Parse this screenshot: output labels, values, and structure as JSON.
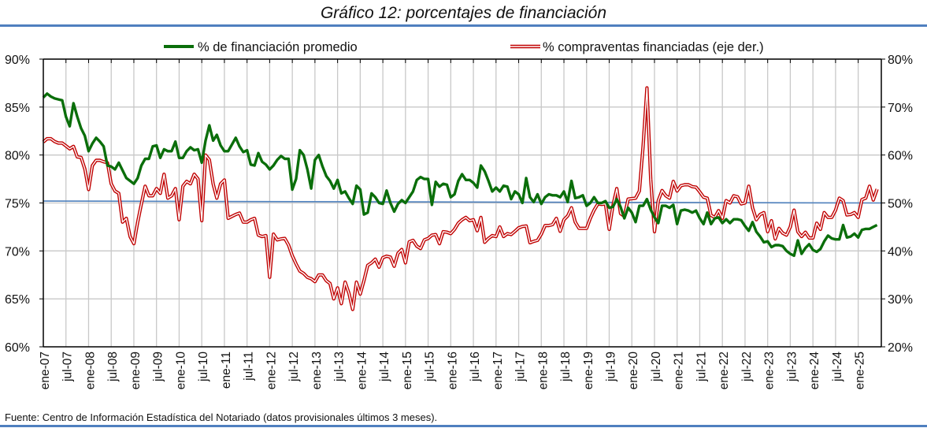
{
  "title": "Gráfico 12: porcentajes de financiación",
  "source": "Fuente: Centro de Información Estadística del Notariado (datos provisionales últimos 3 meses).",
  "chart_data": {
    "type": "line",
    "title": "Gráfico 12: porcentajes de financiación",
    "legend_position": "top",
    "grid": true,
    "left_axis": {
      "ylim": [
        60,
        90
      ],
      "ticks": [
        "60%",
        "65%",
        "70%",
        "75%",
        "80%",
        "85%",
        "90%"
      ],
      "tick_values": [
        60,
        65,
        70,
        75,
        80,
        85,
        90
      ]
    },
    "right_axis": {
      "ylim": [
        20,
        80
      ],
      "ticks": [
        "20%",
        "30%",
        "40%",
        "50%",
        "60%",
        "70%",
        "80%"
      ],
      "tick_values": [
        20,
        30,
        40,
        50,
        60,
        70,
        80
      ]
    },
    "x_tick_labels": [
      "ene-07",
      "jul-07",
      "ene-08",
      "jul-08",
      "ene-09",
      "jul-09",
      "ene-10",
      "jul-10",
      "ene-11",
      "jul-11",
      "ene-12",
      "jul-12",
      "ene-13",
      "jul-13",
      "ene-14",
      "jul-14",
      "ene-15",
      "jul-15",
      "ene-16",
      "jul-16",
      "ene-17",
      "jul-17",
      "ene-18",
      "jul-18",
      "ene-19",
      "jul-19",
      "ene-20",
      "jul-20",
      "ene-21",
      "jul-21",
      "ene-22",
      "jul-22",
      "ene-23",
      "jul-23",
      "ene-24",
      "jul-24",
      "ene-25"
    ],
    "x": [
      "2007-01",
      "2007-02",
      "2007-03",
      "2007-04",
      "2007-05",
      "2007-06",
      "2007-07",
      "2007-08",
      "2007-09",
      "2007-10",
      "2007-11",
      "2007-12",
      "2008-01",
      "2008-02",
      "2008-03",
      "2008-04",
      "2008-05",
      "2008-06",
      "2008-07",
      "2008-08",
      "2008-09",
      "2008-10",
      "2008-11",
      "2008-12",
      "2009-01",
      "2009-02",
      "2009-03",
      "2009-04",
      "2009-05",
      "2009-06",
      "2009-07",
      "2009-08",
      "2009-09",
      "2009-10",
      "2009-11",
      "2009-12",
      "2010-01",
      "2010-02",
      "2010-03",
      "2010-04",
      "2010-05",
      "2010-06",
      "2010-07",
      "2010-08",
      "2010-09",
      "2010-10",
      "2010-11",
      "2010-12",
      "2011-01",
      "2011-02",
      "2011-03",
      "2011-04",
      "2011-05",
      "2011-06",
      "2011-07",
      "2011-08",
      "2011-09",
      "2011-10",
      "2011-11",
      "2011-12",
      "2012-01",
      "2012-02",
      "2012-03",
      "2012-04",
      "2012-05",
      "2012-06",
      "2012-07",
      "2012-08",
      "2012-09",
      "2012-10",
      "2012-11",
      "2012-12",
      "2013-01",
      "2013-02",
      "2013-03",
      "2013-04",
      "2013-05",
      "2013-06",
      "2013-07",
      "2013-08",
      "2013-09",
      "2013-10",
      "2013-11",
      "2013-12",
      "2014-01",
      "2014-02",
      "2014-03",
      "2014-04",
      "2014-05",
      "2014-06",
      "2014-07",
      "2014-08",
      "2014-09",
      "2014-10",
      "2014-11",
      "2014-12",
      "2015-01",
      "2015-02",
      "2015-03",
      "2015-04",
      "2015-05",
      "2015-06",
      "2015-07",
      "2015-08",
      "2015-09",
      "2015-10",
      "2015-11",
      "2015-12",
      "2016-01",
      "2016-02",
      "2016-03",
      "2016-04",
      "2016-05",
      "2016-06",
      "2016-07",
      "2016-08",
      "2016-09",
      "2016-10",
      "2016-11",
      "2016-12",
      "2017-01",
      "2017-02",
      "2017-03",
      "2017-04",
      "2017-05",
      "2017-06",
      "2017-07",
      "2017-08",
      "2017-09",
      "2017-10",
      "2017-11",
      "2017-12",
      "2018-01",
      "2018-02",
      "2018-03",
      "2018-04",
      "2018-05",
      "2018-06",
      "2018-07",
      "2018-08",
      "2018-09",
      "2018-10",
      "2018-11",
      "2018-12",
      "2019-01",
      "2019-02",
      "2019-03",
      "2019-04",
      "2019-05",
      "2019-06",
      "2019-07",
      "2019-08",
      "2019-09",
      "2019-10",
      "2019-11",
      "2019-12",
      "2020-01",
      "2020-02",
      "2020-03",
      "2020-04",
      "2020-05",
      "2020-06",
      "2020-07",
      "2020-08",
      "2020-09",
      "2020-10",
      "2020-11",
      "2020-12",
      "2021-01",
      "2021-02",
      "2021-03",
      "2021-04",
      "2021-05",
      "2021-06",
      "2021-07",
      "2021-08",
      "2021-09",
      "2021-10",
      "2021-11",
      "2021-12",
      "2022-01",
      "2022-02",
      "2022-03",
      "2022-04",
      "2022-05",
      "2022-06",
      "2022-07",
      "2022-08",
      "2022-09",
      "2022-10",
      "2022-11",
      "2022-12",
      "2023-01",
      "2023-02",
      "2023-03",
      "2023-04",
      "2023-05",
      "2023-06",
      "2023-07",
      "2023-08",
      "2023-09",
      "2023-10",
      "2023-11",
      "2023-12",
      "2024-01",
      "2024-02",
      "2024-03",
      "2024-04",
      "2024-05",
      "2024-06",
      "2024-07",
      "2024-08",
      "2024-09",
      "2024-10",
      "2024-11",
      "2024-12",
      "2025-01",
      "2025-02",
      "2025-03",
      "2025-04",
      "2025-05",
      "2025-06"
    ],
    "series": [
      {
        "name": "% de financiación promedio",
        "axis": "left",
        "color": "#0a6e0a",
        "values": [
          86.0,
          86.4,
          86.1,
          85.9,
          85.8,
          85.7,
          84.0,
          83.0,
          85.4,
          84.0,
          82.8,
          82.0,
          80.4,
          81.2,
          81.8,
          81.4,
          80.9,
          78.9,
          78.8,
          78.5,
          79.2,
          78.4,
          77.6,
          77.3,
          77.0,
          77.6,
          78.9,
          79.6,
          79.6,
          80.9,
          81.0,
          79.7,
          80.6,
          80.4,
          80.4,
          81.4,
          79.7,
          79.7,
          80.4,
          80.8,
          80.5,
          80.6,
          79.2,
          81.5,
          83.1,
          81.5,
          82.1,
          81.0,
          80.4,
          80.4,
          81.1,
          81.8,
          80.9,
          80.3,
          80.5,
          79.0,
          78.9,
          80.2,
          79.3,
          79.0,
          78.5,
          78.9,
          79.5,
          79.9,
          79.6,
          79.6,
          76.4,
          77.5,
          80.5,
          80.0,
          78.5,
          76.5,
          79.5,
          80.0,
          78.8,
          77.8,
          77.3,
          76.5,
          77.4,
          76.0,
          76.2,
          75.5,
          74.9,
          76.8,
          76.4,
          73.8,
          74.0,
          76.0,
          75.6,
          75.0,
          74.9,
          76.3,
          75.0,
          74.1,
          74.9,
          75.3,
          75.0,
          75.6,
          76.2,
          77.4,
          77.7,
          77.5,
          77.5,
          74.8,
          77.2,
          76.7,
          77.0,
          76.9,
          75.6,
          75.9,
          77.3,
          78.0,
          77.4,
          77.4,
          77.1,
          76.6,
          78.9,
          78.3,
          77.3,
          76.2,
          76.6,
          76.2,
          76.8,
          76.7,
          75.4,
          76.2,
          75.9,
          75.0,
          77.6,
          75.6,
          75.1,
          75.9,
          74.9,
          75.6,
          75.9,
          75.8,
          75.8,
          75.6,
          76.2,
          75.1,
          77.3,
          75.5,
          75.6,
          75.8,
          74.7,
          75.0,
          75.6,
          75.0,
          75.0,
          75.2,
          74.5,
          74.6,
          75.4,
          74.6,
          73.4,
          74.5,
          74.0,
          73.0,
          74.7,
          74.7,
          75.4,
          74.3,
          73.5,
          72.9,
          74.7,
          74.7,
          74.5,
          74.8,
          72.8,
          74.2,
          74.3,
          74.2,
          74.0,
          74.2,
          73.4,
          72.8,
          74.0,
          72.8,
          73.4,
          73.5,
          72.9,
          73.3,
          72.9,
          73.3,
          73.3,
          73.2,
          72.6,
          72.1,
          73.0,
          72.0,
          71.5,
          70.9,
          71.0,
          70.4,
          70.6,
          70.6,
          70.5,
          70.0,
          69.7,
          69.5,
          71.1,
          69.7,
          70.3,
          70.7,
          70.1,
          69.9,
          70.2,
          71.0,
          71.6,
          71.3,
          71.2,
          71.2,
          72.7,
          71.4,
          71.5,
          71.8,
          71.4,
          72.2,
          72.3,
          72.3,
          72.5,
          72.7
        ]
      },
      {
        "name": "% compraventas financiadas (eje der.)",
        "axis": "right",
        "color": "#c00000",
        "values": [
          62.7,
          63.4,
          63.4,
          62.8,
          62.5,
          62.5,
          61.9,
          61.3,
          61.8,
          59.6,
          59.5,
          57.1,
          52.8,
          57.8,
          58.9,
          58.9,
          58.6,
          58.4,
          54.0,
          52.5,
          52.0,
          46.0,
          46.8,
          43.0,
          41.5,
          46.0,
          49.8,
          53.5,
          51.5,
          51.5,
          53.0,
          52.0,
          56.0,
          51.0,
          51.5,
          53.0,
          46.5,
          53.5,
          54.5,
          54.0,
          56.0,
          55.0,
          46.3,
          60.0,
          59.0,
          54.0,
          51.0,
          54.0,
          54.8,
          46.8,
          47.2,
          47.6,
          47.9,
          46.0,
          46.0,
          46.5,
          46.8,
          43.3,
          43.0,
          43.2,
          34.5,
          43.5,
          42.3,
          42.5,
          42.6,
          41.2,
          39.0,
          37.3,
          35.8,
          35.3,
          34.5,
          34.2,
          33.6,
          35.0,
          35.0,
          33.8,
          33.2,
          30.0,
          32.3,
          29.0,
          33.5,
          31.2,
          27.8,
          33.5,
          31.0,
          33.8,
          37.0,
          37.5,
          38.3,
          36.6,
          38.6,
          38.9,
          38.7,
          36.8,
          39.5,
          40.3,
          37.5,
          41.9,
          42.2,
          41.0,
          40.5,
          42.3,
          42.6,
          43.3,
          43.4,
          41.5,
          44.0,
          43.9,
          43.6,
          44.5,
          45.8,
          46.5,
          47.0,
          46.3,
          46.5,
          44.2,
          47.0,
          41.8,
          42.6,
          43.2,
          43.0,
          45.0,
          43.0,
          43.6,
          43.4,
          44.1,
          44.8,
          45.1,
          45.2,
          41.7,
          42.0,
          42.2,
          43.5,
          45.3,
          45.3,
          45.5,
          46.8,
          44.1,
          46.5,
          47.3,
          49.0,
          46.0,
          44.7,
          44.7,
          44.7,
          46.8,
          48.5,
          49.8,
          49.7,
          49.8,
          44.5,
          49.5,
          53.0,
          47.8,
          47.2,
          50.8,
          50.9,
          51.0,
          52.5,
          62.0,
          74.0,
          55.0,
          44.0,
          50.5,
          52.6,
          51.5,
          51.0,
          54.5,
          52.5,
          53.6,
          53.8,
          53.8,
          53.4,
          53.3,
          52.3,
          51.2,
          51.0,
          47.4,
          47.0,
          48.4,
          46.8,
          50.5,
          50.0,
          51.5,
          51.3,
          49.8,
          50.0,
          53.5,
          49.0,
          46.5,
          47.6,
          48.0,
          44.0,
          46.3,
          42.5,
          44.7,
          43.7,
          43.3,
          45.0,
          48.5,
          44.0,
          43.0,
          43.9,
          42.7,
          42.7,
          45.8,
          44.5,
          48.0,
          47.0,
          47.0,
          48.5,
          51.0,
          50.5,
          47.5,
          47.6,
          48.0,
          47.0,
          50.7,
          51.0,
          53.5,
          50.6,
          52.9
        ]
      }
    ],
    "reference_line": {
      "axis": "left",
      "values": [
        75.2,
        75.0
      ],
      "color": "#4f81bd"
    }
  }
}
